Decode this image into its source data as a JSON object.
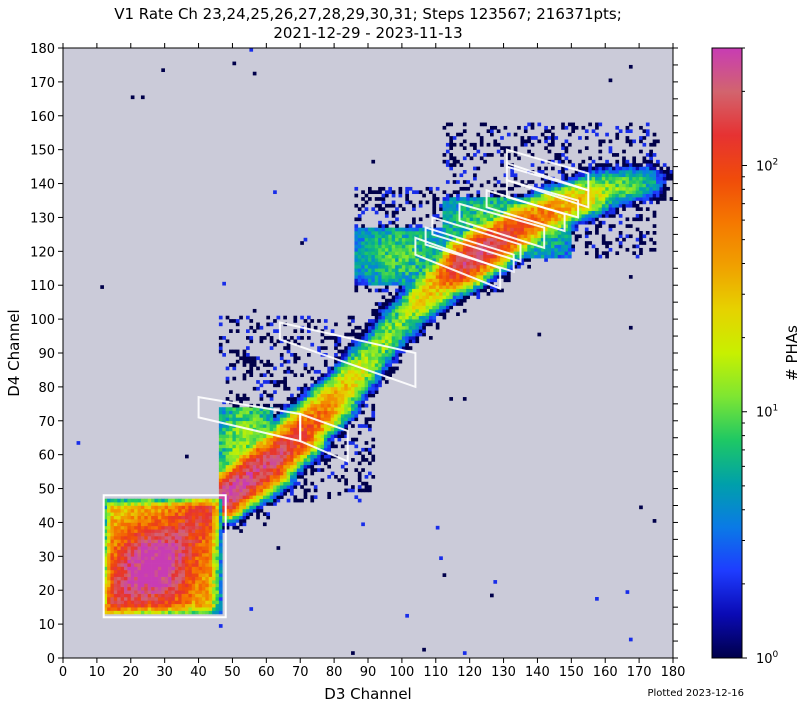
{
  "chart_data": {
    "type": "heatmap",
    "title_line1": "V1 Rate Ch 23,24,25,26,27,28,29,30,31; Steps 123567; 216371pts;",
    "title_line2": "2021-12-29 - 2023-11-13",
    "xlabel": "D3 Channel",
    "ylabel": "D4 Channel",
    "xlim": [
      0,
      180
    ],
    "ylim": [
      0,
      180
    ],
    "bin_size": 1,
    "x_ticks": [
      0,
      10,
      20,
      30,
      40,
      50,
      60,
      70,
      80,
      90,
      100,
      110,
      120,
      130,
      140,
      150,
      160,
      170,
      180
    ],
    "y_ticks": [
      0,
      10,
      20,
      30,
      40,
      50,
      60,
      70,
      80,
      90,
      100,
      110,
      120,
      130,
      140,
      150,
      160,
      170,
      180
    ],
    "background_color": "#cbcbd9",
    "colorbar": {
      "label": "# PHAs",
      "scale": "log",
      "range": [
        1,
        300
      ],
      "ticks": [
        {
          "value": 1,
          "label": "10",
          "exp": "0"
        },
        {
          "value": 10,
          "label": "10",
          "exp": "1"
        },
        {
          "value": 100,
          "label": "10",
          "exp": "2"
        }
      ],
      "colors": [
        "#00004a",
        "#0a0ab4",
        "#1e3cff",
        "#0a7ae6",
        "#00a0aa",
        "#1ec864",
        "#7ee632",
        "#c8f000",
        "#e6d200",
        "#f0a000",
        "#f57800",
        "#f04b0a",
        "#e63232",
        "#d2646e",
        "#c83cb4"
      ]
    },
    "density_model": {
      "ridge": [
        [
          47,
          47,
          300
        ],
        [
          60,
          57,
          220
        ],
        [
          70,
          66,
          110
        ],
        [
          80,
          76,
          40
        ],
        [
          90,
          88,
          15
        ],
        [
          100,
          100,
          12
        ],
        [
          110,
          110,
          40
        ],
        [
          118,
          116,
          200
        ],
        [
          125,
          121,
          190
        ],
        [
          135,
          127,
          90
        ],
        [
          145,
          132,
          50
        ],
        [
          160,
          138,
          15
        ],
        [
          172,
          140,
          6
        ]
      ],
      "box_region": {
        "x": [
          12,
          47
        ],
        "y": [
          13,
          47
        ],
        "peak": [
          26,
          26
        ],
        "peak_value": 280
      },
      "sparse_regions": [
        {
          "x": [
            46,
            92
          ],
          "y": [
            46,
            101
          ],
          "rate": 0.35
        },
        {
          "x": [
            86,
            131
          ],
          "y": [
            108,
            139
          ],
          "rate": 0.45
        },
        {
          "x": [
            112,
            176
          ],
          "y": [
            118,
            158
          ],
          "rate": 0.3
        }
      ],
      "dense_regions": [
        {
          "x": [
            46,
            62
          ],
          "y": [
            46,
            74
          ],
          "value": 14
        },
        {
          "x": [
            86,
            112
          ],
          "y": [
            110,
            127
          ],
          "value": 9
        },
        {
          "x": [
            112,
            150
          ],
          "y": [
            118,
            136
          ],
          "value": 10
        }
      ]
    },
    "box": [
      [
        12,
        48
      ],
      [
        48,
        48
      ],
      [
        48,
        12
      ],
      [
        12,
        12
      ]
    ],
    "polygons": [
      [
        [
          40,
          77
        ],
        [
          70,
          72
        ],
        [
          70,
          64
        ],
        [
          40,
          71
        ]
      ],
      [
        [
          70,
          72
        ],
        [
          84,
          67
        ],
        [
          84,
          58
        ],
        [
          70,
          64
        ]
      ],
      [
        [
          64,
          99
        ],
        [
          104,
          90
        ],
        [
          104,
          80
        ],
        [
          64,
          94
        ]
      ],
      [
        [
          104,
          124
        ],
        [
          129,
          115
        ],
        [
          129,
          109
        ],
        [
          104,
          119
        ]
      ],
      [
        [
          107,
          127
        ],
        [
          133,
          119
        ],
        [
          133,
          114
        ],
        [
          107,
          122
        ]
      ],
      [
        [
          109,
          130
        ],
        [
          135,
          122
        ],
        [
          135,
          117
        ],
        [
          109,
          125
        ]
      ],
      [
        [
          117,
          134
        ],
        [
          142,
          127
        ],
        [
          142,
          121
        ],
        [
          117,
          129
        ]
      ],
      [
        [
          125,
          138
        ],
        [
          148,
          131
        ],
        [
          148,
          126
        ],
        [
          125,
          133
        ]
      ],
      [
        [
          131,
          141
        ],
        [
          152,
          135
        ],
        [
          152,
          130
        ],
        [
          131,
          136
        ]
      ],
      [
        [
          131,
          146
        ],
        [
          155,
          138
        ],
        [
          155,
          133
        ],
        [
          131,
          141
        ]
      ],
      [
        [
          131,
          150
        ],
        [
          155,
          143
        ],
        [
          155,
          138
        ],
        [
          131,
          145
        ]
      ]
    ],
    "footer": "Plotted 2023-12-16"
  }
}
